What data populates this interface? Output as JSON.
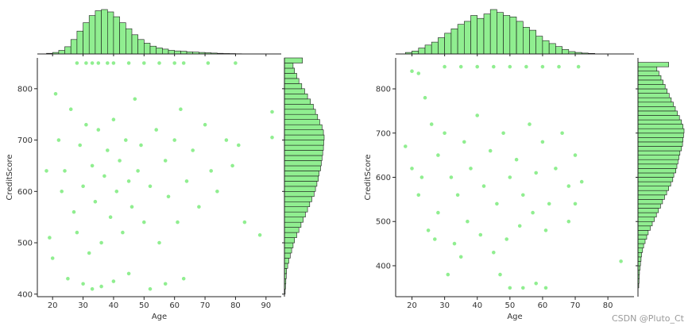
{
  "watermark": "CSDN @Pluto_Ct",
  "colors": {
    "point": "#90ee90",
    "bar_fill": "#90ee90",
    "bar_edge": "#1a1a1a",
    "axis": "#222222",
    "text": "#333333"
  },
  "chart_data": [
    {
      "type": "scatter",
      "subtype": "jointplot",
      "xlabel": "Age",
      "ylabel": "CreditScore",
      "xlim": [
        15,
        95
      ],
      "ylim": [
        395,
        860
      ],
      "x_ticks": [
        20,
        30,
        40,
        50,
        60,
        70,
        80,
        90
      ],
      "y_ticks": [
        400,
        500,
        600,
        700,
        800
      ],
      "points": [
        [
          35,
          850
        ],
        [
          40,
          850
        ],
        [
          28,
          850
        ],
        [
          45,
          850
        ],
        [
          33,
          850
        ],
        [
          38,
          850
        ],
        [
          31,
          850
        ],
        [
          50,
          850
        ],
        [
          55,
          850
        ],
        [
          60,
          850
        ],
        [
          63,
          850
        ],
        [
          71,
          850
        ],
        [
          80,
          850
        ],
        [
          22,
          700
        ],
        [
          24,
          640
        ],
        [
          26,
          760
        ],
        [
          27,
          560
        ],
        [
          28,
          520
        ],
        [
          29,
          690
        ],
        [
          30,
          610
        ],
        [
          31,
          730
        ],
        [
          32,
          480
        ],
        [
          33,
          650
        ],
        [
          34,
          580
        ],
        [
          35,
          720
        ],
        [
          36,
          500
        ],
        [
          37,
          630
        ],
        [
          38,
          680
        ],
        [
          39,
          550
        ],
        [
          40,
          740
        ],
        [
          41,
          600
        ],
        [
          42,
          660
        ],
        [
          43,
          520
        ],
        [
          44,
          700
        ],
        [
          45,
          620
        ],
        [
          46,
          570
        ],
        [
          47,
          780
        ],
        [
          48,
          640
        ],
        [
          49,
          690
        ],
        [
          50,
          540
        ],
        [
          52,
          610
        ],
        [
          54,
          720
        ],
        [
          55,
          500
        ],
        [
          57,
          660
        ],
        [
          58,
          590
        ],
        [
          60,
          700
        ],
        [
          61,
          540
        ],
        [
          62,
          760
        ],
        [
          64,
          620
        ],
        [
          66,
          680
        ],
        [
          68,
          570
        ],
        [
          70,
          730
        ],
        [
          72,
          640
        ],
        [
          74,
          600
        ],
        [
          77,
          700
        ],
        [
          79,
          650
        ],
        [
          81,
          690
        ],
        [
          83,
          540
        ],
        [
          88,
          515
        ],
        [
          92,
          755
        ],
        [
          92,
          705
        ],
        [
          25,
          430
        ],
        [
          30,
          420
        ],
        [
          33,
          410
        ],
        [
          36,
          415
        ],
        [
          40,
          425
        ],
        [
          45,
          440
        ],
        [
          52,
          410
        ],
        [
          57,
          420
        ],
        [
          63,
          430
        ],
        [
          20,
          470
        ],
        [
          23,
          600
        ],
        [
          21,
          790
        ],
        [
          19,
          510
        ],
        [
          18,
          640
        ]
      ],
      "x_hist": {
        "bins": [
          18,
          20,
          22,
          24,
          26,
          28,
          30,
          32,
          34,
          36,
          38,
          40,
          42,
          44,
          46,
          48,
          50,
          52,
          54,
          56,
          58,
          60,
          62,
          64,
          66,
          68,
          70,
          72,
          74,
          76,
          78,
          80,
          82,
          84,
          86,
          88,
          90,
          92
        ],
        "counts": [
          10,
          25,
          60,
          120,
          240,
          380,
          520,
          640,
          720,
          740,
          700,
          620,
          520,
          420,
          320,
          240,
          180,
          130,
          100,
          80,
          60,
          50,
          45,
          35,
          30,
          25,
          20,
          15,
          10,
          8,
          6,
          4,
          3,
          2,
          1,
          1,
          1
        ]
      },
      "y_hist": {
        "bins": [
          400,
          410,
          420,
          430,
          440,
          450,
          460,
          470,
          480,
          490,
          500,
          510,
          520,
          530,
          540,
          550,
          560,
          570,
          580,
          590,
          600,
          610,
          620,
          630,
          640,
          650,
          660,
          670,
          680,
          690,
          700,
          710,
          720,
          730,
          740,
          750,
          760,
          770,
          780,
          790,
          800,
          810,
          820,
          830,
          840,
          850,
          860
        ],
        "counts": [
          10,
          15,
          20,
          25,
          30,
          45,
          60,
          80,
          100,
          120,
          140,
          170,
          200,
          230,
          260,
          290,
          320,
          350,
          380,
          410,
          430,
          450,
          470,
          480,
          500,
          510,
          520,
          530,
          540,
          545,
          550,
          540,
          520,
          490,
          460,
          430,
          400,
          360,
          320,
          280,
          240,
          200,
          170,
          140,
          120,
          250
        ]
      }
    },
    {
      "type": "scatter",
      "subtype": "jointplot",
      "xlabel": "Age",
      "ylabel": "CreditScore",
      "xlim": [
        15,
        88
      ],
      "ylim": [
        330,
        870
      ],
      "x_ticks": [
        20,
        30,
        40,
        50,
        60,
        70,
        80
      ],
      "y_ticks": [
        400,
        500,
        600,
        700,
        800
      ],
      "points": [
        [
          20,
          840
        ],
        [
          22,
          835
        ],
        [
          30,
          850
        ],
        [
          35,
          850
        ],
        [
          40,
          850
        ],
        [
          45,
          850
        ],
        [
          50,
          850
        ],
        [
          55,
          850
        ],
        [
          60,
          850
        ],
        [
          65,
          850
        ],
        [
          71,
          850
        ],
        [
          24,
          780
        ],
        [
          26,
          720
        ],
        [
          28,
          650
        ],
        [
          30,
          700
        ],
        [
          32,
          600
        ],
        [
          34,
          560
        ],
        [
          36,
          680
        ],
        [
          38,
          620
        ],
        [
          40,
          740
        ],
        [
          42,
          580
        ],
        [
          44,
          660
        ],
        [
          46,
          540
        ],
        [
          48,
          700
        ],
        [
          50,
          600
        ],
        [
          52,
          640
        ],
        [
          54,
          560
        ],
        [
          56,
          720
        ],
        [
          58,
          610
        ],
        [
          60,
          680
        ],
        [
          62,
          540
        ],
        [
          64,
          620
        ],
        [
          66,
          700
        ],
        [
          68,
          580
        ],
        [
          70,
          650
        ],
        [
          72,
          590
        ],
        [
          18,
          670
        ],
        [
          20,
          620
        ],
        [
          23,
          600
        ],
        [
          25,
          480
        ],
        [
          28,
          520
        ],
        [
          33,
          450
        ],
        [
          37,
          500
        ],
        [
          41,
          470
        ],
        [
          45,
          430
        ],
        [
          49,
          460
        ],
        [
          53,
          490
        ],
        [
          57,
          520
        ],
        [
          61,
          480
        ],
        [
          22,
          560
        ],
        [
          27,
          460
        ],
        [
          31,
          380
        ],
        [
          35,
          420
        ],
        [
          47,
          380
        ],
        [
          50,
          350
        ],
        [
          54,
          350
        ],
        [
          58,
          360
        ],
        [
          61,
          350
        ],
        [
          84,
          410
        ],
        [
          70,
          540
        ],
        [
          68,
          500
        ]
      ],
      "x_hist": {
        "bins": [
          18,
          20,
          22,
          24,
          26,
          28,
          30,
          32,
          34,
          36,
          38,
          40,
          42,
          44,
          46,
          48,
          50,
          52,
          54,
          56,
          58,
          60,
          62,
          64,
          66,
          68,
          70,
          72,
          74,
          76
        ],
        "counts": [
          5,
          10,
          20,
          30,
          40,
          55,
          70,
          85,
          100,
          110,
          130,
          120,
          135,
          150,
          140,
          130,
          125,
          110,
          90,
          80,
          60,
          45,
          35,
          25,
          15,
          8,
          5,
          3,
          2
        ]
      },
      "y_hist": {
        "bins": [
          350,
          360,
          370,
          380,
          390,
          400,
          410,
          420,
          430,
          440,
          450,
          460,
          470,
          480,
          490,
          500,
          510,
          520,
          530,
          540,
          550,
          560,
          570,
          580,
          590,
          600,
          610,
          620,
          630,
          640,
          650,
          660,
          670,
          680,
          690,
          700,
          710,
          720,
          730,
          740,
          750,
          760,
          770,
          780,
          790,
          800,
          810,
          820,
          830,
          840,
          850,
          860
        ],
        "counts": [
          3,
          4,
          5,
          6,
          8,
          10,
          12,
          14,
          18,
          22,
          28,
          34,
          40,
          48,
          56,
          64,
          72,
          80,
          88,
          96,
          104,
          112,
          120,
          128,
          136,
          140,
          148,
          152,
          156,
          160,
          164,
          170,
          174,
          176,
          178,
          180,
          176,
          170,
          162,
          154,
          146,
          138,
          130,
          122,
          114,
          106,
          98,
          90,
          82,
          74,
          120
        ]
      }
    }
  ]
}
